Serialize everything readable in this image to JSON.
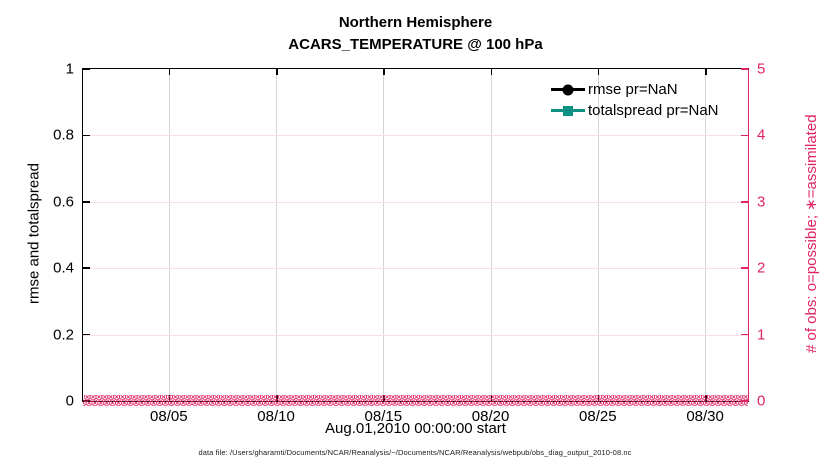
{
  "title": {
    "line1": "Northern Hemisphere",
    "line2": "ACARS_TEMPERATURE @ 100 hPa"
  },
  "axes": {
    "left": {
      "label": "rmse and totalspread",
      "ticks": [
        "0",
        "0.2",
        "0.4",
        "0.6",
        "0.8",
        "1"
      ],
      "color": "#000000"
    },
    "right": {
      "label": "# of obs: o=possible; ∗=assimilated",
      "ticks": [
        "0",
        "1",
        "2",
        "3",
        "4",
        "5"
      ],
      "color": "#e02467"
    },
    "x": {
      "label": "Aug.01,2010 00:00:00 start",
      "ticks": [
        "08/05",
        "08/10",
        "08/15",
        "08/20",
        "08/25",
        "08/30"
      ],
      "tick_positions_pct": [
        12.903,
        29.032,
        45.161,
        61.29,
        77.419,
        93.548
      ]
    }
  },
  "legend": [
    {
      "label": "rmse pr=NaN",
      "marker": "circle",
      "color": "#000000"
    },
    {
      "label": "totalspread pr=NaN",
      "marker": "square",
      "color": "#0f9183"
    }
  ],
  "obs_band": {
    "glyph": "⊗",
    "repeat_per_row": 140,
    "rows": 2,
    "color": "#e02467"
  },
  "caption": "data file: /Users/gharamti/Documents/NCAR/Reanalysis/~/Documents/NCAR/Reanalysis/webpub/obs_diag_output_2010-08.nc",
  "chart_data": {
    "type": "line",
    "title": "Northern Hemisphere",
    "subtitle": "ACARS_TEMPERATURE @ 100 hPa",
    "xlabel": "Aug.01,2010 00:00:00 start",
    "ylabel_left": "rmse and totalspread",
    "ylabel_right": "# of obs: o=possible; ∗=assimilated",
    "x_range": [
      "2010-08-01 00:00",
      "2010-09-01 00:00"
    ],
    "x_ticks": [
      "08/05",
      "08/10",
      "08/15",
      "08/20",
      "08/25",
      "08/30"
    ],
    "ylim_left": [
      0,
      1
    ],
    "ylim_right": [
      0,
      5
    ],
    "grid": {
      "vertical": true,
      "horizontal": true
    },
    "legend_position": "top-right-inside",
    "series": [
      {
        "name": "rmse pr=NaN",
        "axis": "left",
        "values": "NaN (no visible curve)"
      },
      {
        "name": "totalspread pr=NaN",
        "axis": "left",
        "values": "NaN (no visible curve)"
      },
      {
        "name": "# of obs possible (o)",
        "axis": "right",
        "values_approx": 0,
        "note": "dense pink circle markers at y=0 for every time bin Aug 1 - Sep 1"
      },
      {
        "name": "# of obs assimilated (∗)",
        "axis": "right",
        "values_approx": 0,
        "note": "pink cross markers overlapping the circles at y=0"
      }
    ]
  }
}
